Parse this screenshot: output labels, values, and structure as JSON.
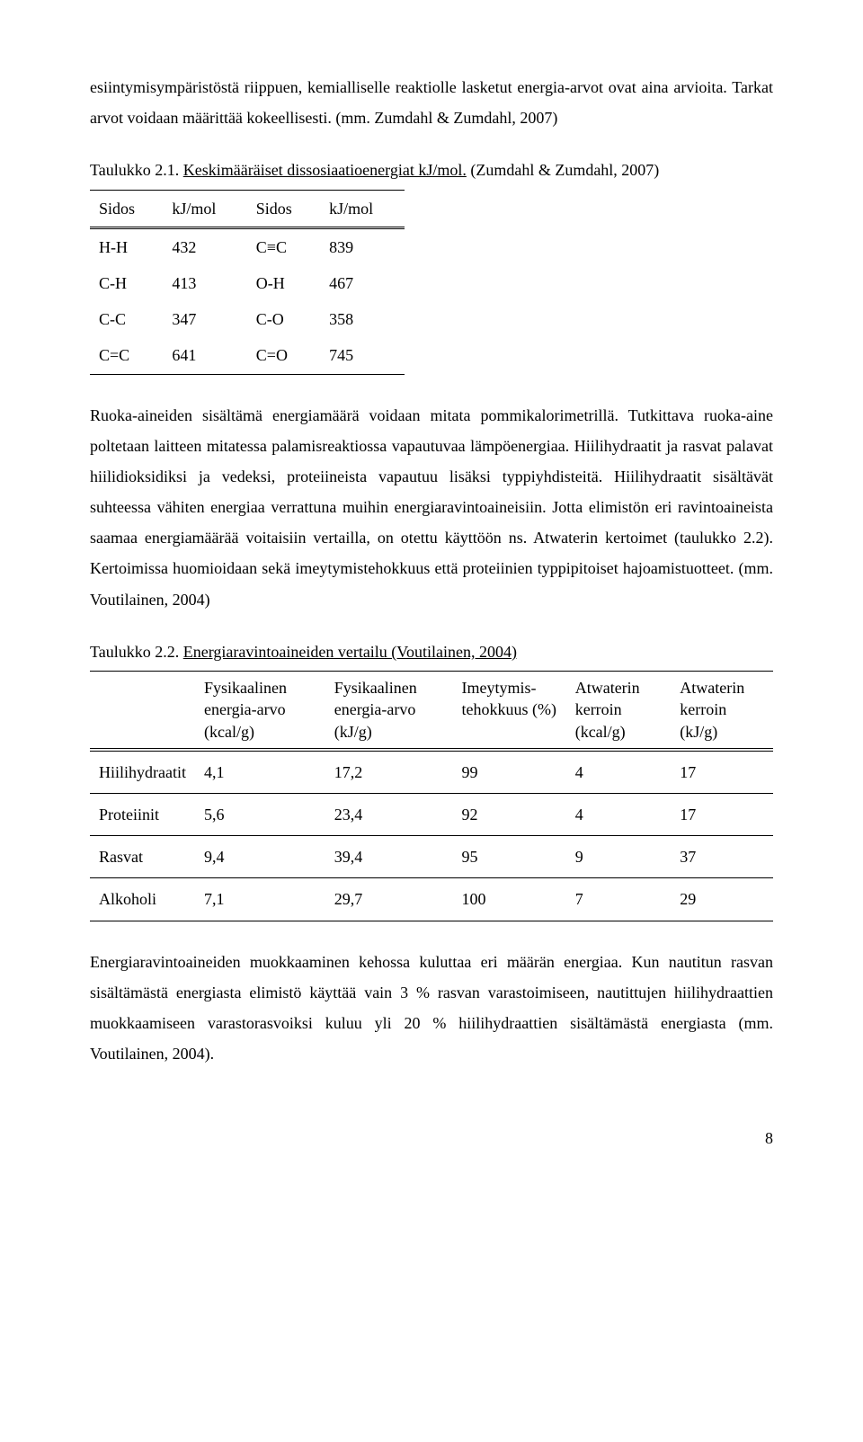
{
  "para1": "esiintymisympäristöstä riippuen, kemialliselle reaktiolle lasketut energia-arvot ovat aina arvioita. Tarkat arvot voidaan määrittää kokeellisesti. (mm. Zumdahl & Zumdahl, 2007)",
  "table1": {
    "caption_plain": "Taulukko 2.1.",
    "caption_underlined": "Keskimääräiset dissosiaatioenergiat kJ/mol.",
    "caption_tail": " (Zumdahl & Zumdahl, 2007)",
    "headers": [
      "Sidos",
      "kJ/mol",
      "Sidos",
      "kJ/mol"
    ],
    "rows": [
      [
        "H-H",
        "432",
        "C≡C",
        "839"
      ],
      [
        "C-H",
        "413",
        "O-H",
        "467"
      ],
      [
        "C-C",
        "347",
        "C-O",
        "358"
      ],
      [
        "C=C",
        "641",
        "C=O",
        "745"
      ]
    ]
  },
  "para2": "Ruoka-aineiden sisältämä energiamäärä voidaan mitata pommikalorimetrillä. Tutkittava ruoka-aine poltetaan laitteen mitatessa palamisreaktiossa vapautuvaa lämpöenergiaa. Hiilihydraatit ja rasvat palavat hiilidioksidiksi ja vedeksi, proteiineista vapautuu lisäksi typpiyhdisteitä. Hiilihydraatit sisältävät suhteessa vähiten energiaa verrattuna muihin energiaravintoaineisiin. Jotta elimistön eri ravintoaineista saamaa energiamäärää voitaisiin vertailla, on otettu käyttöön ns. Atwaterin kertoimet (taulukko 2.2). Kertoimissa huomioidaan sekä imeytymistehokkuus että proteiinien typpipitoiset hajoamistuotteet. (mm. Voutilainen, 2004)",
  "table2": {
    "caption_plain": "Taulukko 2.2.",
    "caption_underlined": "Energiaravintoaineiden vertailu (Voutilainen, 2004)",
    "headers": [
      "",
      "Fysikaalinen energia-arvo (kcal/g)",
      "Fysikaalinen energia-arvo (kJ/g)",
      "Imeytymis-\ntehokkuus (%)",
      "Atwaterin kerroin (kcal/g)",
      "Atwaterin kerroin (kJ/g)"
    ],
    "rows": [
      [
        "Hiilihydraatit",
        "4,1",
        "17,2",
        "99",
        "4",
        "17"
      ],
      [
        "Proteiinit",
        "5,6",
        "23,4",
        "92",
        "4",
        "17"
      ],
      [
        "Rasvat",
        "9,4",
        "39,4",
        "95",
        "9",
        "37"
      ],
      [
        "Alkoholi",
        "7,1",
        "29,7",
        "100",
        "7",
        "29"
      ]
    ]
  },
  "para3": "Energiaravintoaineiden muokkaaminen kehossa kuluttaa eri määrän energiaa. Kun nautitun rasvan sisältämästä energiasta elimistö käyttää vain 3 % rasvan varastoimiseen, nautittujen hiilihydraattien muokkaamiseen varastorasvoiksi kuluu yli 20 % hiilihydraattien sisältämästä energiasta (mm. Voutilainen, 2004).",
  "page_number": "8"
}
